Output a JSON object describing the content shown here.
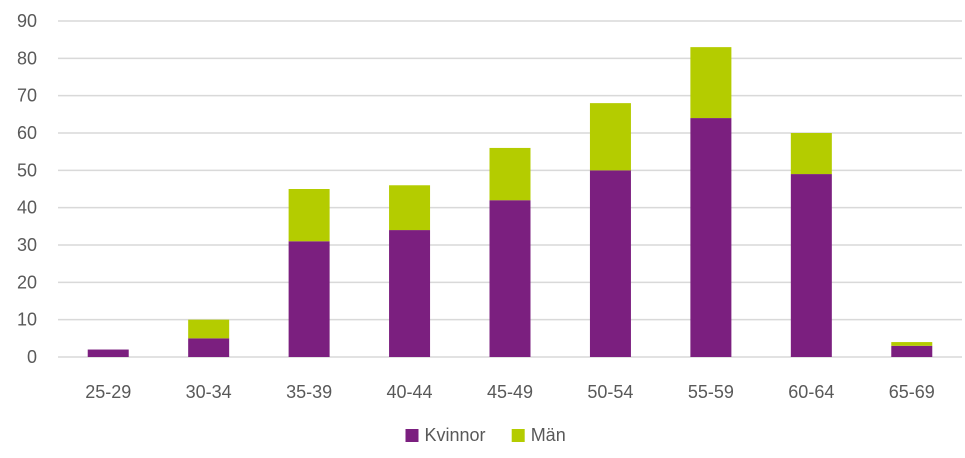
{
  "chart_data": {
    "type": "bar",
    "stacked": true,
    "title": "",
    "xlabel": "",
    "ylabel": "",
    "categories": [
      "25-29",
      "30-34",
      "35-39",
      "40-44",
      "45-49",
      "50-54",
      "55-59",
      "60-64",
      "65-69"
    ],
    "series": [
      {
        "name": "Kvinnor",
        "color": "#7b1f7f",
        "values": [
          2,
          5,
          31,
          34,
          42,
          50,
          64,
          49,
          3
        ]
      },
      {
        "name": "Män",
        "color": "#b4cc00",
        "values": [
          0,
          5,
          14,
          12,
          14,
          18,
          19,
          11,
          1
        ]
      }
    ],
    "ylim": [
      0,
      90
    ],
    "yticks": [
      0,
      10,
      20,
      30,
      40,
      50,
      60,
      70,
      80,
      90
    ],
    "grid": true,
    "legend": {
      "position": "bottom",
      "entries": [
        "Kvinnor",
        "Män"
      ]
    }
  }
}
